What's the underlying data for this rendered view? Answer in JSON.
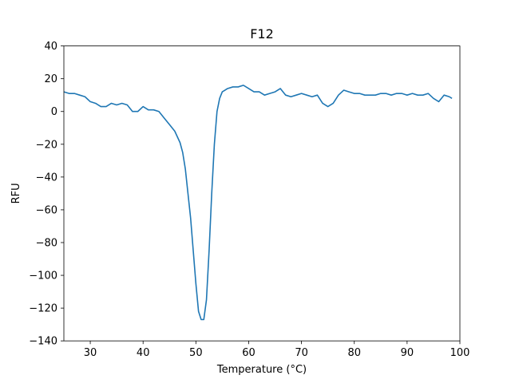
{
  "chart_data": {
    "type": "line",
    "title": "F12",
    "xlabel": "Temperature (°C)",
    "ylabel": "RFU",
    "xlim": [
      25,
      100
    ],
    "ylim": [
      -140,
      40
    ],
    "xticks": [
      30,
      40,
      50,
      60,
      70,
      80,
      90,
      100
    ],
    "yticks": [
      40,
      20,
      0,
      -20,
      -40,
      -60,
      -80,
      -100,
      -120,
      -140
    ],
    "grid": false,
    "series_color": "#1f77b4",
    "series": [
      {
        "x": [
          25,
          26,
          27,
          28,
          29,
          30,
          31,
          32,
          33,
          34,
          35,
          36,
          37,
          38,
          39,
          40,
          41,
          42,
          43,
          44,
          45,
          46,
          47,
          47.5,
          48,
          48.5,
          49,
          49.5,
          50,
          50.5,
          51,
          51.5,
          52,
          52.5,
          53,
          53.5,
          54,
          54.5,
          55,
          55.5,
          56,
          57,
          58,
          59,
          60,
          61,
          62,
          63,
          64,
          65,
          66,
          67,
          68,
          69,
          70,
          71,
          72,
          73,
          74,
          75,
          76,
          77,
          78,
          79,
          80,
          81,
          82,
          83,
          84,
          85,
          86,
          87,
          88,
          89,
          90,
          91,
          92,
          93,
          94,
          95,
          96,
          97,
          98,
          98.5
        ],
        "y": [
          12,
          11,
          11,
          10,
          9,
          6,
          5,
          3,
          3,
          5,
          4,
          5,
          4,
          0,
          0,
          3,
          1,
          1,
          0,
          -4,
          -8,
          -12,
          -19,
          -25,
          -35,
          -50,
          -65,
          -85,
          -105,
          -122,
          -127,
          -127,
          -115,
          -85,
          -50,
          -20,
          0,
          8,
          12,
          13,
          14,
          15,
          15,
          16,
          14,
          12,
          12,
          10,
          11,
          12,
          14,
          10,
          9,
          10,
          11,
          10,
          9,
          10,
          5,
          3,
          5,
          10,
          13,
          12,
          11,
          11,
          10,
          10,
          10,
          11,
          11,
          10,
          11,
          11,
          10,
          11,
          10,
          10,
          11,
          8,
          6,
          10,
          9,
          8
        ]
      }
    ]
  }
}
